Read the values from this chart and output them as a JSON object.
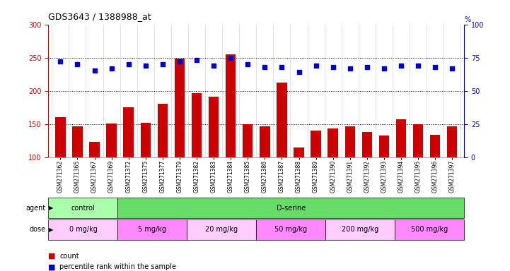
{
  "title": "GDS3643 / 1388988_at",
  "samples": [
    "GSM271362",
    "GSM271365",
    "GSM271367",
    "GSM271369",
    "GSM271372",
    "GSM271375",
    "GSM271377",
    "GSM271379",
    "GSM271382",
    "GSM271383",
    "GSM271384",
    "GSM271385",
    "GSM271386",
    "GSM271387",
    "GSM271388",
    "GSM271389",
    "GSM271390",
    "GSM271391",
    "GSM271392",
    "GSM271393",
    "GSM271394",
    "GSM271395",
    "GSM271396",
    "GSM271397"
  ],
  "counts": [
    160,
    146,
    123,
    151,
    175,
    152,
    181,
    249,
    196,
    191,
    255,
    150,
    147,
    212,
    115,
    140,
    143,
    147,
    138,
    133,
    157,
    150,
    134,
    147
  ],
  "percentile_ranks": [
    72,
    70,
    65,
    67,
    70,
    69,
    70,
    72,
    73,
    69,
    75,
    70,
    68,
    68,
    64,
    69,
    68,
    67,
    68,
    67,
    69,
    69,
    68,
    67
  ],
  "bar_color": "#cc0000",
  "dot_color": "#0000cc",
  "left_ylim": [
    100,
    300
  ],
  "left_yticks": [
    100,
    150,
    200,
    250,
    300
  ],
  "right_ylim": [
    0,
    100
  ],
  "right_yticks": [
    0,
    25,
    50,
    75,
    100
  ],
  "hline_values": [
    150,
    200,
    250
  ],
  "agent_groups": [
    {
      "label": "control",
      "start": 0,
      "end": 4,
      "color": "#aaffaa"
    },
    {
      "label": "D-serine",
      "start": 4,
      "end": 24,
      "color": "#66dd66"
    }
  ],
  "dose_groups": [
    {
      "label": "0 mg/kg",
      "start": 0,
      "end": 4,
      "color": "#ffccff"
    },
    {
      "label": "5 mg/kg",
      "start": 4,
      "end": 8,
      "color": "#ff88ff"
    },
    {
      "label": "20 mg/kg",
      "start": 8,
      "end": 12,
      "color": "#ffccff"
    },
    {
      "label": "50 mg/kg",
      "start": 12,
      "end": 16,
      "color": "#ff88ff"
    },
    {
      "label": "200 mg/kg",
      "start": 16,
      "end": 20,
      "color": "#ffccff"
    },
    {
      "label": "500 mg/kg",
      "start": 20,
      "end": 24,
      "color": "#ff88ff"
    }
  ],
  "legend_count_label": "count",
  "legend_pct_label": "percentile rank within the sample",
  "agent_label": "agent",
  "dose_label": "dose"
}
